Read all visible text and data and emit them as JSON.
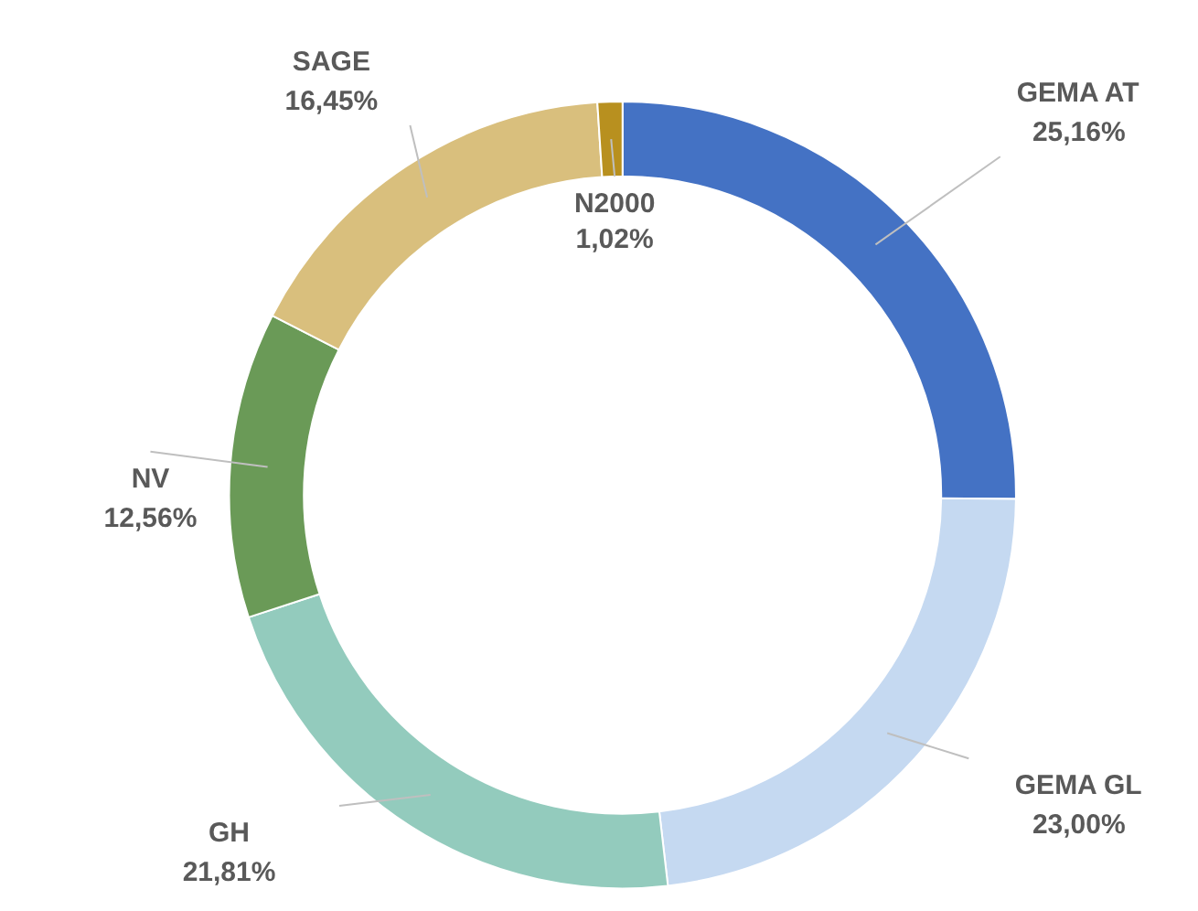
{
  "chart_data": {
    "type": "donut",
    "categories": [
      "GEMA AT",
      "GEMA GL",
      "GH",
      "NV",
      "SAGE",
      "N2000"
    ],
    "values": [
      25.16,
      23.0,
      21.81,
      12.56,
      16.45,
      1.02
    ],
    "colors": [
      "#4472c4",
      "#c5d9f1",
      "#93cbbd",
      "#6a9a57",
      "#d9bf7d",
      "#b8901f"
    ],
    "value_labels": [
      "25,16%",
      "23,00%",
      "21,81%",
      "12,56%",
      "16,45%",
      "1,02%"
    ]
  }
}
